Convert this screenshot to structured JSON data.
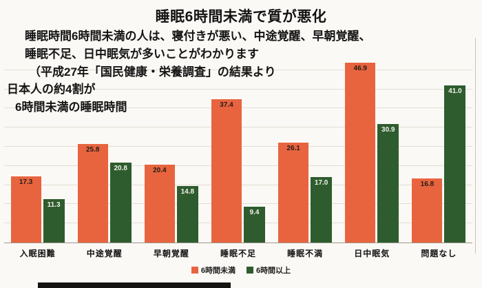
{
  "title": "睡眠6時間未満で質が悪化",
  "annotations": [
    "睡眠時間6時間未満の人は、寝付きが悪い、中途覚醒、早朝覚醒、",
    "睡眠不足、日中眠気が多いことがわかります",
    "（平成27年「国民健康・栄養調査」の結果より",
    "日本人の約4割が",
    "6時間未満の睡眠時間"
  ],
  "chart_data": {
    "type": "bar",
    "categories": [
      "入眠困難",
      "中途覚醒",
      "早朝覚醒",
      "睡眠不足",
      "睡眠不満",
      "日中眠気",
      "問題なし"
    ],
    "series": [
      {
        "name": "6時間未満",
        "color": "#e8643f",
        "values": [
          17.3,
          25.8,
          20.4,
          37.4,
          26.1,
          46.9,
          16.8
        ]
      },
      {
        "name": "6時間以上",
        "color": "#2e5c2e",
        "values": [
          11.3,
          20.8,
          14.8,
          9.4,
          17.0,
          30.9,
          41.0
        ]
      }
    ],
    "ylim": [
      0,
      50
    ],
    "grid": "horizontal",
    "gridline_step": 5,
    "legend_position": "bottom"
  }
}
